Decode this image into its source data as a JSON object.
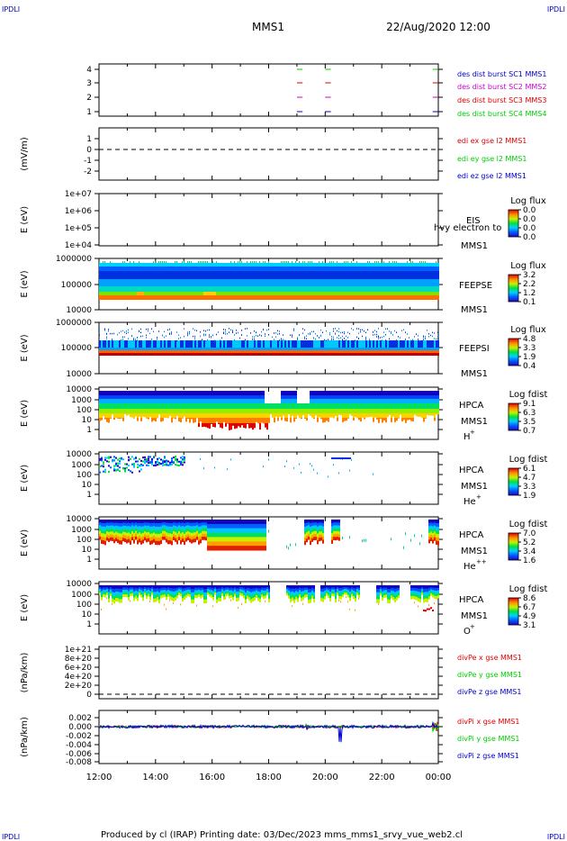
{
  "page": {
    "corner_tl": "IPDLI",
    "corner_tr": "IPDLI",
    "corner_bl": "IPDLI",
    "corner_br": "IPDLI",
    "mission": "MMS1",
    "date": "22/Aug/2020 12:00",
    "footer": "Produced by cl (IRAP)   Printing date: 03/Dec/2023   mms_mms1_srvy_vue_web2.cl"
  },
  "colors": {
    "red": "#dd0000",
    "green": "#00cc00",
    "blue": "#0000cc",
    "magenta": "#cc00cc",
    "black": "#000000"
  },
  "chart_data": {
    "type": "multi-panel time series",
    "x_ticks": [
      "12:00",
      "14:00",
      "16:00",
      "18:00",
      "20:00",
      "22:00",
      "00:00"
    ],
    "panels": [
      {
        "id": "burst",
        "yticks": [
          "4",
          "3",
          "2",
          "1"
        ],
        "ylabel": "",
        "legend": [
          {
            "text": "des dist burst SC1 MMS1",
            "color": "#0000cc"
          },
          {
            "text": "des dist burst SC2 MMS2",
            "color": "#cc00cc"
          },
          {
            "text": "des dist burst SC3 MMS3",
            "color": "#dd0000"
          },
          {
            "text": "des dist burst SC4 MMS4",
            "color": "#00cc00"
          }
        ]
      },
      {
        "id": "edi",
        "yticks": [
          "1",
          "0",
          "-1",
          "-2"
        ],
        "ylabel": "(mV/m)",
        "legend": [
          {
            "text": "edi ex gse l2 MMS1",
            "color": "#dd0000"
          },
          {
            "text": "edi ey gse l2 MMS1",
            "color": "#00cc00"
          },
          {
            "text": "edi ez gse l2 MMS1",
            "color": "#0000cc"
          }
        ]
      },
      {
        "id": "eis",
        "yticks": [
          "1e+07",
          "1e+06",
          "1e+05",
          "1e+04"
        ],
        "ylabel": "E (eV)",
        "side": [
          "EIS",
          "MMS1"
        ],
        "overlap": "hvy electron to",
        "cbar_title": "Log flux",
        "cbar_ticks": [
          "0.0",
          "0.0",
          "0.0",
          "0.0"
        ]
      },
      {
        "id": "feepse",
        "yticks": [
          "1000000",
          "100000",
          "10000"
        ],
        "ylabel": "E (eV)",
        "side": [
          "FEEPSE",
          "MMS1"
        ],
        "cbar_title": "Log flux",
        "cbar_ticks": [
          "3.2",
          "2.2",
          "1.2",
          "0.1"
        ]
      },
      {
        "id": "feepsi",
        "yticks": [
          "1000000",
          "100000",
          "10000"
        ],
        "ylabel": "E (eV)",
        "side": [
          "FEEPSI",
          "MMS1"
        ],
        "cbar_title": "Log flux",
        "cbar_ticks": [
          "4.8",
          "3.3",
          "1.9",
          "0.4"
        ]
      },
      {
        "id": "hpca_h",
        "yticks": [
          "10000",
          "1000",
          "100",
          "10",
          "1"
        ],
        "ylabel": "E (eV)",
        "side": [
          "HPCA",
          "MMS1"
        ],
        "species": "H",
        "sup": "+",
        "cbar_title": "Log fdist",
        "cbar_ticks": [
          "9.1",
          "6.3",
          "3.5",
          "0.7"
        ]
      },
      {
        "id": "hpca_he1",
        "yticks": [
          "10000",
          "1000",
          "100",
          "10",
          "1"
        ],
        "ylabel": "E (eV)",
        "side": [
          "HPCA",
          "MMS1"
        ],
        "species": "He",
        "sup": "+",
        "cbar_title": "Log fdist",
        "cbar_ticks": [
          "6.1",
          "4.7",
          "3.3",
          "1.9"
        ]
      },
      {
        "id": "hpca_he2",
        "yticks": [
          "10000",
          "1000",
          "100",
          "10",
          "1"
        ],
        "ylabel": "E (eV)",
        "side": [
          "HPCA",
          "MMS1"
        ],
        "species": "He",
        "sup": "++",
        "cbar_title": "Log fdist",
        "cbar_ticks": [
          "7.0",
          "5.2",
          "3.4",
          "1.6"
        ]
      },
      {
        "id": "hpca_o",
        "yticks": [
          "10000",
          "1000",
          "100",
          "10",
          "1"
        ],
        "ylabel": "E (eV)",
        "side": [
          "HPCA",
          "MMS1"
        ],
        "species": "O",
        "sup": "+",
        "cbar_title": "Log fdist",
        "cbar_ticks": [
          "8.6",
          "6.7",
          "4.9",
          "3.1"
        ]
      },
      {
        "id": "divpe",
        "yticks": [
          "1e+21",
          "8e+20",
          "6e+20",
          "4e+20",
          "2e+20",
          "0"
        ],
        "ylabel": "(nPa/km)",
        "legend": [
          {
            "text": "divPe x gse MMS1",
            "color": "#dd0000"
          },
          {
            "text": "divPe y gse MMS1",
            "color": "#00cc00"
          },
          {
            "text": "divPe z gse MMS1",
            "color": "#0000cc"
          }
        ]
      },
      {
        "id": "divpi",
        "yticks": [
          "0.002",
          "0.000",
          "-0.002",
          "-0.004",
          "-0.006",
          "-0.008"
        ],
        "ylabel": "(nPa/km)",
        "legend": [
          {
            "text": "divPi x gse MMS1",
            "color": "#dd0000"
          },
          {
            "text": "divPi y gse MMS1",
            "color": "#00cc00"
          },
          {
            "text": "divPi z gse MMS1",
            "color": "#0000cc"
          }
        ]
      }
    ]
  }
}
